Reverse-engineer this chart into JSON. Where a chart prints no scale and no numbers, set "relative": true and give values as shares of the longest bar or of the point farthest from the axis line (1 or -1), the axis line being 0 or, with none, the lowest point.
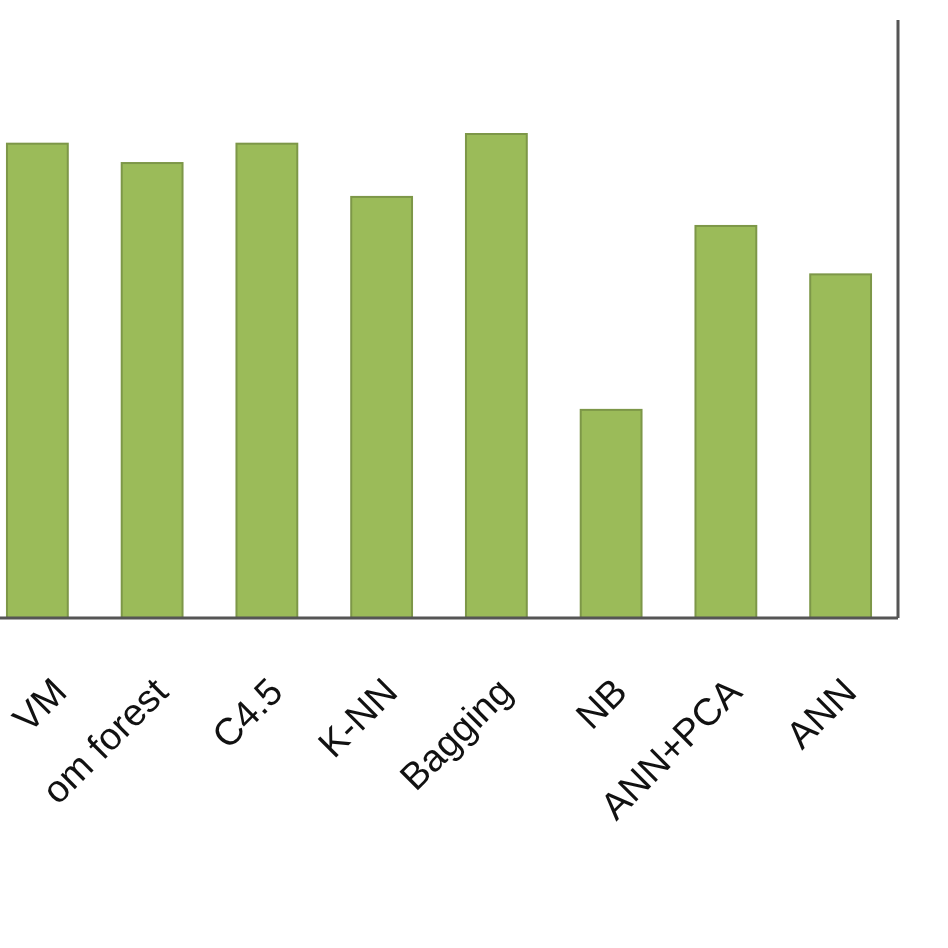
{
  "chart_data": {
    "type": "bar",
    "relative": true,
    "categories": [
      "VM",
      "om forest",
      "C4.5",
      "K-NN",
      "Bagging",
      "NB",
      "ANN+PCA",
      "ANN"
    ],
    "values": [
      0.98,
      0.94,
      0.98,
      0.87,
      1,
      0.43,
      0.81,
      0.71
    ],
    "color": "#9bbb59"
  }
}
